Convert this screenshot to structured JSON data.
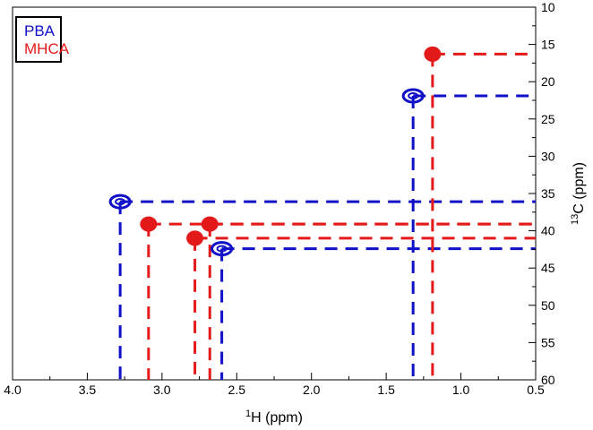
{
  "chart_data": {
    "type": "scatter",
    "subtype": "2D NMR HSQC spectrum with cross-peaks and projection guide lines",
    "xlabel": {
      "sup": "1",
      "text": "H (ppm)"
    },
    "ylabel": {
      "sup": "13",
      "text": "C (ppm)"
    },
    "xlim": [
      4.0,
      0.5
    ],
    "ylim": [
      10,
      60
    ],
    "x_reversed": true,
    "y_reversed": true,
    "x_ticks": [
      "4.0",
      "3.5",
      "3.0",
      "2.5",
      "2.0",
      "1.5",
      "1.0",
      "0.5"
    ],
    "x_tick_values": [
      4.0,
      3.5,
      3.0,
      2.5,
      2.0,
      1.5,
      1.0,
      0.5
    ],
    "y_ticks": [
      "10",
      "15",
      "20",
      "25",
      "30",
      "35",
      "40",
      "45",
      "50",
      "55",
      "60"
    ],
    "y_tick_values": [
      10,
      15,
      20,
      25,
      30,
      35,
      40,
      45,
      50,
      55,
      60
    ],
    "y_axis_side": "right",
    "grid": false,
    "legend": {
      "placement": "top-left",
      "box": true
    },
    "series": [
      {
        "name": "PBA",
        "color": "#1010c8",
        "line_style": "dashed",
        "marker": "contour-ring",
        "peaks": [
          {
            "x": 3.28,
            "y": 36.1
          },
          {
            "x": 2.6,
            "y": 42.4
          },
          {
            "x": 1.32,
            "y": 21.9
          }
        ]
      },
      {
        "name": "MHCA",
        "color": "#e41a1a",
        "line_style": "dashed",
        "marker": "filled-blob",
        "peaks": [
          {
            "x": 3.09,
            "y": 39.1
          },
          {
            "x": 2.68,
            "y": 39.1
          },
          {
            "x": 2.78,
            "y": 41.0
          },
          {
            "x": 1.19,
            "y": 16.3
          }
        ]
      }
    ]
  }
}
